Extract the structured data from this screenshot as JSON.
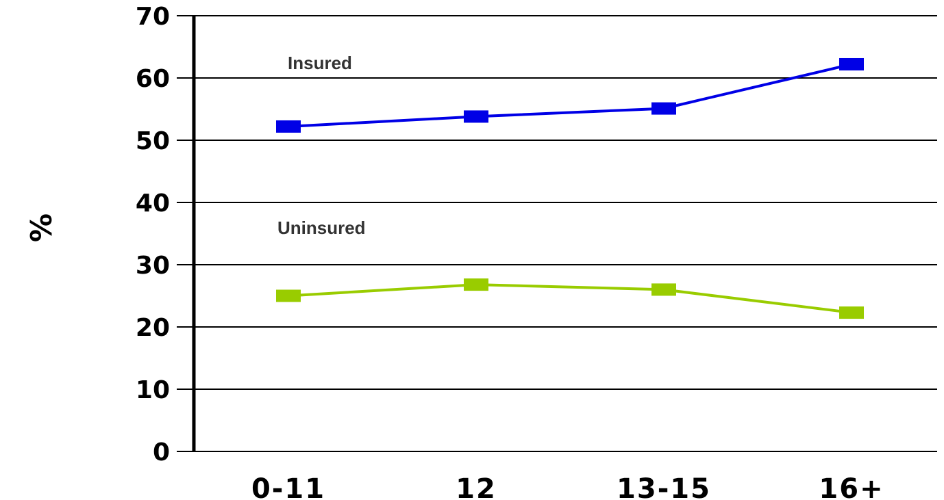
{
  "chart_data": {
    "type": "line",
    "categories": [
      "0-11",
      "12",
      "13-15",
      "16+"
    ],
    "series": [
      {
        "name": "Insured",
        "values": [
          52.2,
          53.8,
          55.1,
          62.2
        ],
        "color": "#0000e6"
      },
      {
        "name": "Uninsured",
        "values": [
          25.0,
          26.8,
          26.0,
          22.3
        ],
        "color": "#99cc00"
      }
    ],
    "xlabel": "",
    "ylabel": "%",
    "ylim": [
      0,
      70
    ],
    "yticks": [
      "0",
      "10",
      "20",
      "30",
      "40",
      "50",
      "60",
      "70"
    ],
    "grid": true,
    "legend": "inline labels"
  }
}
